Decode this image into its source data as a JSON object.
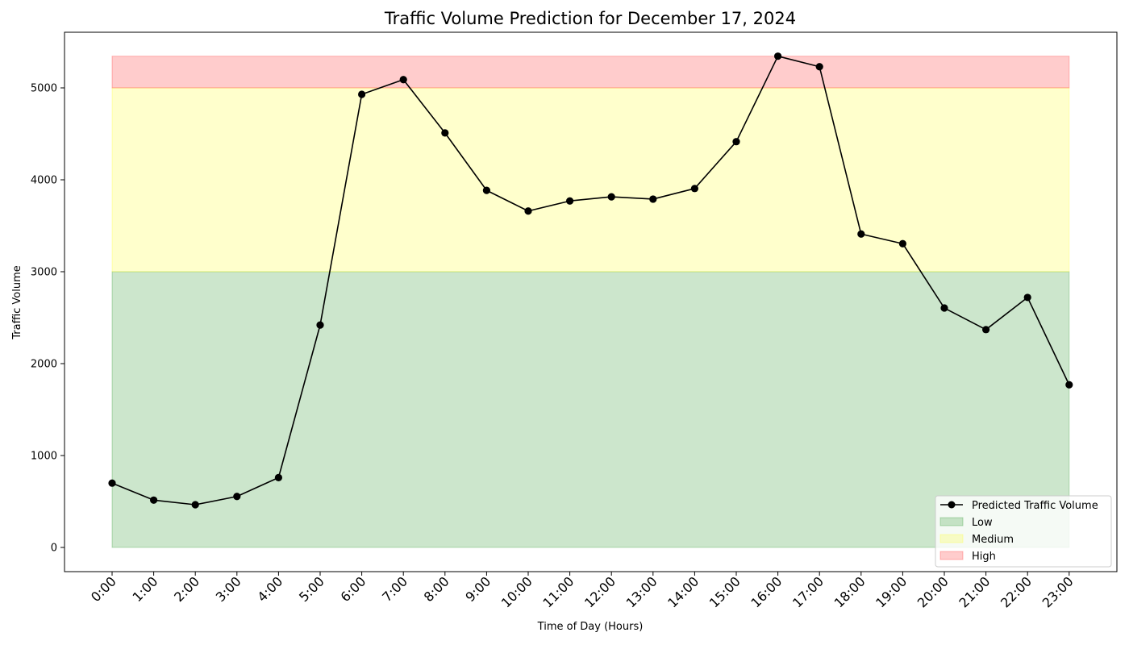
{
  "chart_data": {
    "type": "line",
    "title": "Traffic Volume Prediction for December 17, 2024",
    "xlabel": "Time of Day (Hours)",
    "ylabel": "Traffic Volume",
    "ylim": [
      -250,
      5600
    ],
    "yticks": [
      0,
      1000,
      2000,
      3000,
      4000,
      5000
    ],
    "grid": false,
    "legend_position": "lower-right",
    "categories": [
      "0:00",
      "1:00",
      "2:00",
      "3:00",
      "4:00",
      "5:00",
      "6:00",
      "7:00",
      "8:00",
      "9:00",
      "10:00",
      "11:00",
      "12:00",
      "13:00",
      "14:00",
      "15:00",
      "16:00",
      "17:00",
      "18:00",
      "19:00",
      "20:00",
      "21:00",
      "22:00",
      "23:00"
    ],
    "series": [
      {
        "name": "Predicted Traffic Volume",
        "color": "#000000",
        "marker": "circle",
        "values": [
          700,
          515,
          465,
          555,
          760,
          2420,
          4930,
          5090,
          4510,
          3885,
          3660,
          3770,
          3815,
          3790,
          3905,
          4415,
          5345,
          5230,
          3410,
          3305,
          2605,
          2370,
          2720,
          1770
        ]
      }
    ],
    "bands": [
      {
        "name": "Low",
        "from": 0,
        "to": 3000,
        "color": "#008000",
        "opacity": 0.2
      },
      {
        "name": "Medium",
        "from": 3000,
        "to": 5000,
        "color": "#ffff00",
        "opacity": 0.2
      },
      {
        "name": "High",
        "from": 5000,
        "to": 5345,
        "color": "#ff0000",
        "opacity": 0.2
      }
    ]
  }
}
